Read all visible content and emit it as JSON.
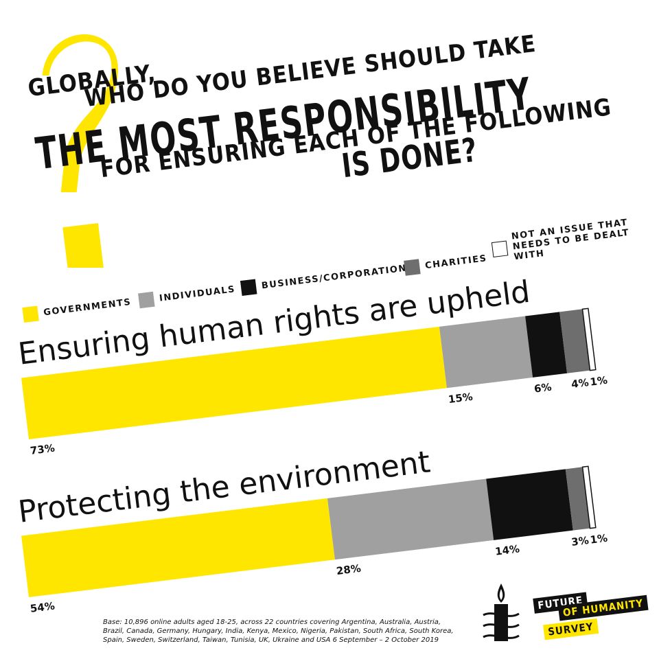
{
  "headline": {
    "line1": "GLOBALLY,",
    "line2": "WHO DO YOU BELIEVE SHOULD TAKE",
    "line3": "THE MOST RESPONSIBILITY",
    "line4": "FOR ENSURING EACH OF THE FOLLOWING",
    "line5": "IS DONE?"
  },
  "legend": [
    {
      "label": "GOVERNMENTS",
      "color": "#ffe600"
    },
    {
      "label": "INDIVIDUALS",
      "color": "#a0a0a0"
    },
    {
      "label": "BUSINESS/CORPORATIONS",
      "color": "#111111"
    },
    {
      "label": "CHARITIES",
      "color": "#6e6e6e"
    },
    {
      "label": "NOT AN ISSUE THAT NEEDS TO BE DEALT WITH",
      "color": "#ffffff"
    }
  ],
  "chart_data": {
    "type": "bar",
    "orientation": "horizontal-stacked",
    "categories": [
      "Ensuring human rights are upheld",
      "Protecting the environment"
    ],
    "series": [
      {
        "name": "GOVERNMENTS",
        "values": [
          73,
          54
        ],
        "color": "#ffe600"
      },
      {
        "name": "INDIVIDUALS",
        "values": [
          15,
          28
        ],
        "color": "#a0a0a0"
      },
      {
        "name": "BUSINESS/CORPORATIONS",
        "values": [
          6,
          14
        ],
        "color": "#111111"
      },
      {
        "name": "CHARITIES",
        "values": [
          4,
          3
        ],
        "color": "#6e6e6e"
      },
      {
        "name": "NOT AN ISSUE THAT NEEDS TO BE DEALT WITH",
        "values": [
          1,
          1
        ],
        "color": "#ffffff"
      }
    ],
    "value_labels": [
      [
        "73%",
        "15%",
        "6%",
        "4%",
        "1%"
      ],
      [
        "54%",
        "28%",
        "14%",
        "3%",
        "1%"
      ]
    ]
  },
  "footer": {
    "base_note": "Base: 10,896 online adults aged 18-25, across 22 countries covering Argentina, Australia, Austria, Brazil, Canada, Germany, Hungary, India, Kenya, Mexico, Nigeria, Pakistan, South Africa, South Korea, Spain, Sweden, Switzerland, Taiwan, Tunisia, UK, Ukraine and USA 6 September – 2 October 2019"
  },
  "branding": {
    "logo_icon": "amnesty-candle-icon",
    "survey_line1": "FUTURE",
    "survey_line2": "OF HUMANITY",
    "survey_line3": "SURVEY"
  },
  "colors": {
    "accent_yellow": "#ffe600",
    "ink": "#111111"
  }
}
